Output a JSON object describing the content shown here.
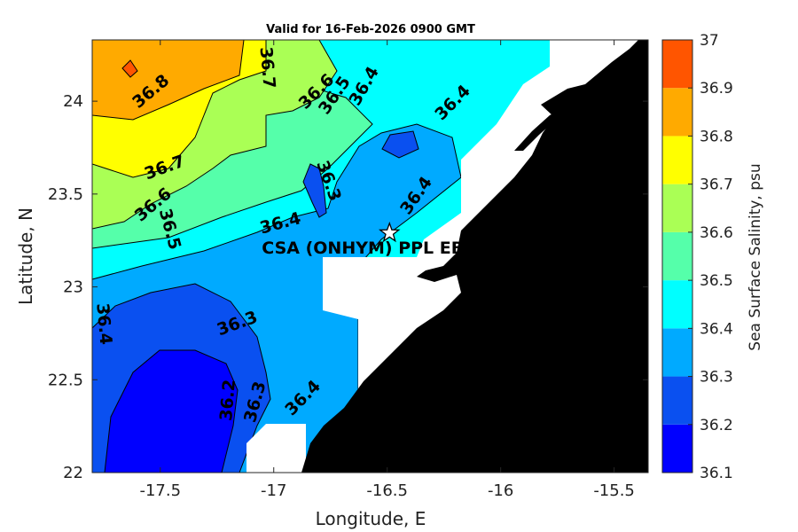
{
  "title": "Valid for 16-Feb-2026 0900 GMT",
  "xlabel": "Longitude, E",
  "ylabel": "Latitude, N",
  "colorbar_label": "Sea Surface Salinity, psu",
  "station": {
    "name": "CSA (ONHYM) PPL EBS  - We",
    "lon": -16.49,
    "lat": 23.29
  },
  "chart_data": {
    "type": "heatmap",
    "title": "Valid for 16-Feb-2026 0900 GMT",
    "xlabel": "Longitude, E",
    "ylabel": "Latitude, N",
    "xlim": [
      -17.8,
      -15.35
    ],
    "ylim": [
      22.0,
      24.33
    ],
    "x_ticks": [
      "-17.5",
      "-17",
      "-16.5",
      "-16",
      "-15.5"
    ],
    "x_tick_values": [
      -17.5,
      -17.0,
      -16.5,
      -16.0,
      -15.5
    ],
    "y_ticks": [
      "22",
      "22.5",
      "23",
      "23.5",
      "24"
    ],
    "y_tick_values": [
      22.0,
      22.5,
      23.0,
      23.5,
      24.0
    ],
    "colorbar": {
      "label": "Sea Surface Salinity, psu",
      "ticks": [
        "36.1",
        "36.2",
        "36.3",
        "36.4",
        "36.5",
        "36.6",
        "36.7",
        "36.8",
        "36.9",
        "37"
      ],
      "levels": [
        36.1,
        36.2,
        36.3,
        36.4,
        36.5,
        36.6,
        36.7,
        36.8,
        36.9,
        37.0
      ],
      "colors": [
        "#0000ff",
        "#0a50f0",
        "#00aaff",
        "#00ffff",
        "#55ffaa",
        "#aaff55",
        "#ffff00",
        "#ffaa00",
        "#ff5500"
      ]
    },
    "land_color": "#000000",
    "no_data_color": "#ffffff",
    "contour_labels": [
      {
        "text": "36.8",
        "lon": -17.54,
        "lat": 24.05,
        "angle": -40
      },
      {
        "text": "36.7",
        "lon": -17.03,
        "lat": 24.18,
        "angle": 85
      },
      {
        "text": "36.6",
        "lon": -16.81,
        "lat": 24.05,
        "angle": -45
      },
      {
        "text": "36.5",
        "lon": -16.73,
        "lat": 24.03,
        "angle": -55
      },
      {
        "text": "36.4",
        "lon": -16.6,
        "lat": 24.08,
        "angle": -60
      },
      {
        "text": "36.4",
        "lon": -16.21,
        "lat": 23.99,
        "angle": -45
      },
      {
        "text": "36.7",
        "lon": -17.48,
        "lat": 23.64,
        "angle": -20
      },
      {
        "text": "36.6",
        "lon": -17.53,
        "lat": 23.44,
        "angle": -40
      },
      {
        "text": "36.5",
        "lon": -17.46,
        "lat": 23.31,
        "angle": 75
      },
      {
        "text": "36.3",
        "lon": -16.76,
        "lat": 23.57,
        "angle": 70
      },
      {
        "text": "36.4",
        "lon": -16.37,
        "lat": 23.49,
        "angle": -55
      },
      {
        "text": "36.4",
        "lon": -16.97,
        "lat": 23.34,
        "angle": -15
      },
      {
        "text": "36.4",
        "lon": -17.75,
        "lat": 22.8,
        "angle": 85
      },
      {
        "text": "36.3",
        "lon": -17.16,
        "lat": 22.8,
        "angle": -20
      },
      {
        "text": "36.2",
        "lon": -17.2,
        "lat": 22.39,
        "angle": -85
      },
      {
        "text": "36.3",
        "lon": -17.08,
        "lat": 22.38,
        "angle": -75
      },
      {
        "text": "36.4",
        "lon": -16.87,
        "lat": 22.4,
        "angle": -45
      }
    ]
  }
}
